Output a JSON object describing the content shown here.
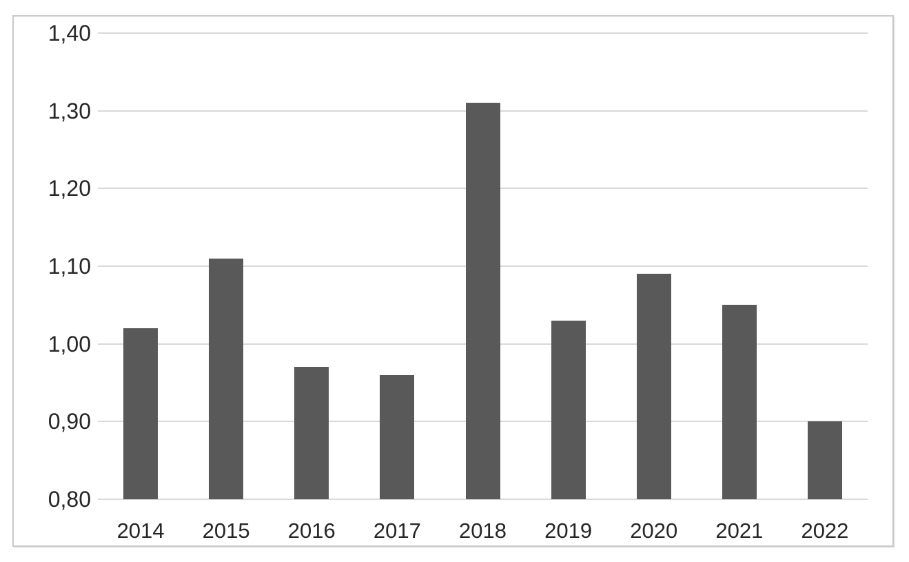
{
  "chart_data": {
    "type": "bar",
    "title": "",
    "xlabel": "",
    "ylabel": "",
    "categories": [
      "2014",
      "2015",
      "2016",
      "2017",
      "2018",
      "2019",
      "2020",
      "2021",
      "2022"
    ],
    "values": [
      1.02,
      1.11,
      0.97,
      0.96,
      1.31,
      1.03,
      1.09,
      1.05,
      0.9
    ],
    "ylim": [
      0.8,
      1.4
    ],
    "ytick_step": 0.1,
    "yticks": [
      {
        "value": 1.4,
        "label": "1,40"
      },
      {
        "value": 1.3,
        "label": "1,30"
      },
      {
        "value": 1.2,
        "label": "1,20"
      },
      {
        "value": 1.1,
        "label": "1,10"
      },
      {
        "value": 1.0,
        "label": "1,00"
      },
      {
        "value": 0.9,
        "label": "0,90"
      },
      {
        "value": 0.8,
        "label": "0,80"
      }
    ],
    "decimal_separator": ",",
    "grid": true,
    "legend": "none",
    "colors": {
      "bar": "#595959",
      "gridline": "#d9d9d9",
      "tick_label": "#262626",
      "frame_border": "#c9c9c9",
      "background": "#ffffff"
    }
  }
}
